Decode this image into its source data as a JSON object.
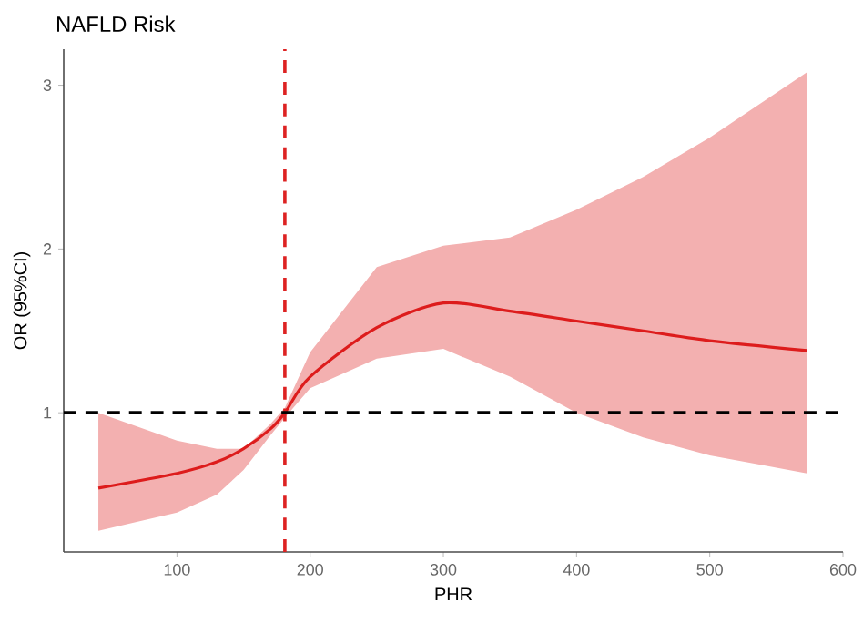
{
  "chart_data": {
    "type": "line",
    "title": "NAFLD Risk",
    "xlabel": "PHR",
    "ylabel": "OR (95%CI)",
    "xlim": [
      15,
      600
    ],
    "ylim": [
      0.15,
      3.22
    ],
    "xticks": [
      100,
      200,
      300,
      400,
      500,
      600
    ],
    "yticks": [
      1,
      2,
      3
    ],
    "series": [
      {
        "color": "#dd1c1c",
        "x": [
          41,
          100,
          130,
          150,
          170,
          181,
          200,
          250,
          300,
          350,
          400,
          450,
          500,
          573
        ],
        "values": [
          0.54,
          0.63,
          0.7,
          0.78,
          0.9,
          1.0,
          1.22,
          1.52,
          1.67,
          1.62,
          1.56,
          1.5,
          1.44,
          1.38
        ],
        "lower": [
          0.28,
          0.39,
          0.5,
          0.65,
          0.86,
          0.97,
          1.15,
          1.33,
          1.39,
          1.22,
          1.0,
          0.85,
          0.74,
          0.63
        ],
        "upper": [
          1.0,
          0.83,
          0.78,
          0.78,
          0.93,
          1.03,
          1.37,
          1.89,
          2.02,
          2.07,
          2.24,
          2.44,
          2.68,
          3.08
        ]
      }
    ],
    "ref_lines": [
      {
        "axis": "x",
        "value": 181,
        "color": "#dd2222",
        "line_style": "dashed"
      },
      {
        "axis": "y",
        "value": 1,
        "color": "#000000",
        "line_style": "dashed"
      }
    ],
    "grid": false
  }
}
